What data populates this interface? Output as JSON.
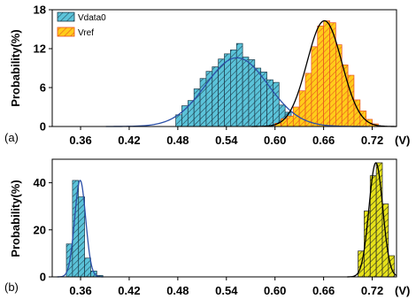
{
  "chart_data": [
    {
      "type": "bar",
      "panel_label": "(a)",
      "ylabel": "Probability(%)",
      "x_unit_label": "(V)",
      "xlim": [
        0.325,
        0.75
      ],
      "ylim": [
        0,
        18
      ],
      "x_tick_labels": [
        "0.36",
        "0.42",
        "0.48",
        "0.54",
        "0.60",
        "0.66",
        "0.72"
      ],
      "x_ticks": [
        0.36,
        0.42,
        0.48,
        0.54,
        0.6,
        0.66,
        0.72
      ],
      "y_tick_labels": [
        "0",
        "6",
        "12",
        "18"
      ],
      "y_ticks": [
        0,
        6,
        12,
        18
      ],
      "bin_width": 0.0075,
      "legend": {
        "placement": "top-left",
        "entries": [
          "Vdata0",
          "Vref"
        ]
      },
      "series": [
        {
          "name": "Vdata0",
          "color": "#5bc3d9",
          "hatch": "#1c3a4a",
          "bin_starts": [
            0.4775,
            0.485,
            0.4925,
            0.5,
            0.5075,
            0.515,
            0.5225,
            0.53,
            0.5375,
            0.545,
            0.5525,
            0.56,
            0.5675,
            0.575,
            0.5825,
            0.59,
            0.5975,
            0.605,
            0.6125,
            0.62
          ],
          "values": [
            1.8,
            3.2,
            4.0,
            5.8,
            7.4,
            8.5,
            9.2,
            10.4,
            11.2,
            11.8,
            12.8,
            10.7,
            10.3,
            9.0,
            8.4,
            7.2,
            6.8,
            3.3,
            2.2,
            1.2
          ],
          "fit": {
            "mean": 0.553,
            "sigma": 0.0385,
            "peak": 10.6,
            "color": "#2a4fa8"
          }
        },
        {
          "name": "Vref",
          "color": "#ffcc1a",
          "hatch": "#e8501f",
          "bin_starts": [
            0.6,
            0.6075,
            0.615,
            0.6225,
            0.63,
            0.6375,
            0.645,
            0.6525,
            0.66,
            0.6675,
            0.675,
            0.6825,
            0.69,
            0.6975,
            0.705,
            0.7125,
            0.72
          ],
          "values": [
            0.5,
            1.2,
            1.6,
            3.0,
            5.5,
            8.2,
            12.3,
            15.5,
            16.3,
            16.0,
            12.6,
            9.5,
            7.9,
            4.1,
            2.4,
            1.1,
            0.4
          ],
          "fit": {
            "mean": 0.661,
            "sigma": 0.0215,
            "peak": 16.3,
            "color": "#000000"
          }
        }
      ]
    },
    {
      "type": "bar",
      "panel_label": "(b)",
      "ylabel": "Probability(%)",
      "x_unit_label": "(V)",
      "xlim": [
        0.325,
        0.75
      ],
      "ylim": [
        0,
        50
      ],
      "x_tick_labels": [
        "0.36",
        "0.42",
        "0.48",
        "0.54",
        "0.60",
        "0.66",
        "0.72"
      ],
      "x_ticks": [
        0.36,
        0.42,
        0.48,
        0.54,
        0.6,
        0.66,
        0.72
      ],
      "y_tick_labels": [
        "0",
        "20",
        "40"
      ],
      "y_ticks": [
        0,
        20,
        40
      ],
      "bin_width": 0.0075,
      "series": [
        {
          "color": "#5bc3d9",
          "hatch": "#1c3a4a",
          "bin_starts": [
            0.3425,
            0.35,
            0.3575,
            0.365,
            0.3725,
            0.38
          ],
          "values": [
            14.0,
            41.0,
            34.0,
            8.0,
            2.5,
            0.6
          ],
          "fit": {
            "mean": 0.3595,
            "sigma": 0.0068,
            "peak": 41.0,
            "color": "#2a4fa8"
          }
        },
        {
          "color": "#e6e21a",
          "hatch": "#222222",
          "bin_starts": [
            0.7025,
            0.71,
            0.7175,
            0.725,
            0.7325,
            0.74
          ],
          "values": [
            11.0,
            28.0,
            43.0,
            48.5,
            31.0,
            9.0
          ],
          "fit": {
            "mean": 0.7245,
            "sigma": 0.0085,
            "peak": 48.5,
            "color": "#000000"
          }
        }
      ]
    }
  ]
}
